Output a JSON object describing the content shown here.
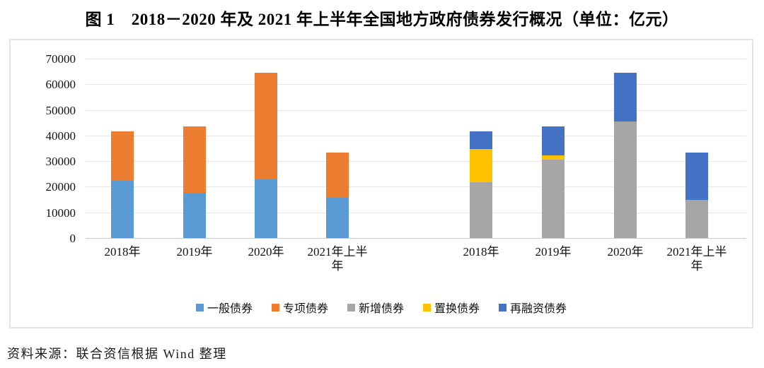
{
  "title": "图 1　2018－2020 年及 2021 年上半年全国地方政府债券发行概况（单位：亿元）",
  "source_note": "资料来源：联合资信根据 Wind 整理",
  "chart_data": {
    "type": "bar",
    "subtype": "stacked-grouped",
    "unit": "亿元",
    "ylim": [
      0,
      70000
    ],
    "yticks": [
      0,
      10000,
      20000,
      30000,
      40000,
      50000,
      60000,
      70000
    ],
    "grid": true,
    "legend_position": "bottom",
    "legend": [
      {
        "label": "一般债券",
        "color": "#5B9BD5"
      },
      {
        "label": "专项债券",
        "color": "#ED7D31"
      },
      {
        "label": "新增债券",
        "color": "#A6A6A6"
      },
      {
        "label": "置换债券",
        "color": "#FFC000"
      },
      {
        "label": "再融资债券",
        "color": "#4472C4"
      }
    ],
    "groups": [
      {
        "categories": [
          "2018年",
          "2019年",
          "2020年",
          "2021年上半\n年"
        ],
        "series": [
          {
            "name": "一般债券",
            "color": "#5B9BD5",
            "values": [
              22190,
              17740,
              22870,
              15600
            ]
          },
          {
            "name": "专项债券",
            "color": "#ED7D31",
            "values": [
              19460,
              25880,
              41570,
              17810
            ]
          }
        ]
      },
      {
        "categories": [
          "2018年",
          "2019年",
          "2020年",
          "2021年上半\n年"
        ],
        "series": [
          {
            "name": "新增债券",
            "color": "#A6A6A6",
            "values": [
              21680,
              30560,
              45530,
              14800
            ]
          },
          {
            "name": "置换债券",
            "color": "#FFC000",
            "values": [
              13130,
              1580,
              0,
              0
            ]
          },
          {
            "name": "再融资债券",
            "color": "#4472C4",
            "values": [
              6840,
              11480,
              18910,
              18610
            ]
          }
        ]
      }
    ]
  }
}
